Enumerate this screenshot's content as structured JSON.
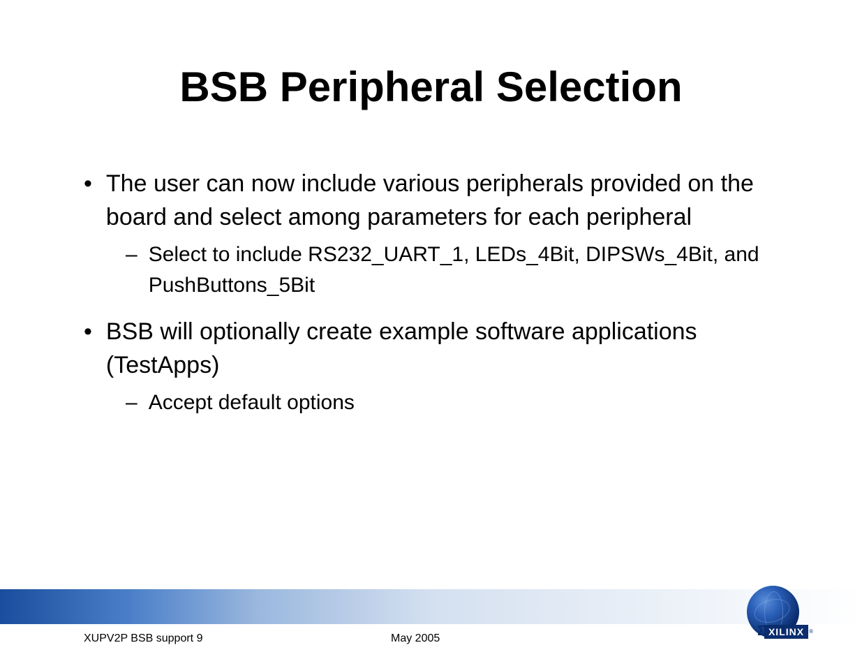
{
  "slide": {
    "title": "BSB Peripheral Selection",
    "bullets": [
      {
        "text": "The user can now include various peripherals provided on the board and select among parameters for each peripheral",
        "subitems": [
          "Select to include RS232_UART_1, LEDs_4Bit, DIPSWs_4Bit, and PushButtons_5Bit"
        ]
      },
      {
        "text": "BSB will optionally create example software applications (TestApps)",
        "subitems": [
          "Accept default options"
        ]
      }
    ]
  },
  "footer": {
    "left_text": "XUPV2P BSB support   9",
    "center_text": "May 2005",
    "logo_name": "XILINX"
  },
  "styling": {
    "title_fontsize": 60,
    "title_color": "#000000",
    "bullet_fontsize": 34,
    "bullet_color": "#000000",
    "sub_bullet_fontsize": 30,
    "sub_bullet_color": "#000000",
    "footer_fontsize": 16,
    "footer_color": "#000000",
    "background_color": "#ffffff",
    "gradient_colors": [
      "#1a4d9e",
      "#4a7fc8",
      "#9bb8de",
      "#d4e0f0",
      "#ffffff"
    ],
    "logo_primary_color": "#0a2d6e",
    "logo_gradient": [
      "#5a8ed8",
      "#2a5fb8",
      "#0a2d6e",
      "#051a45"
    ]
  }
}
